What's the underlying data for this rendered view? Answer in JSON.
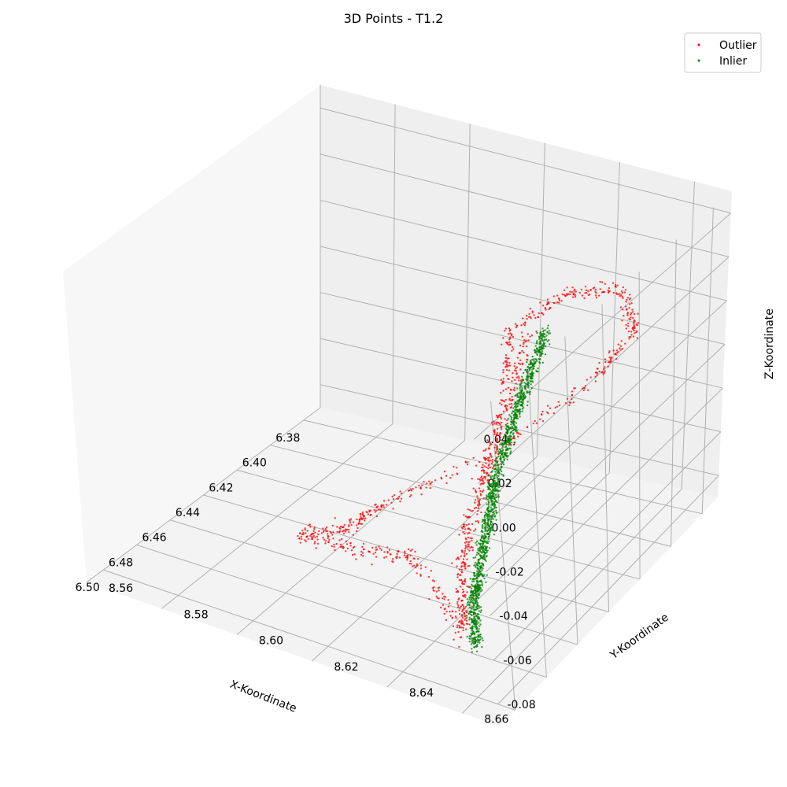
{
  "chart_data": {
    "type": "scatter",
    "projection": "3d",
    "title": "3D Points - T1.2",
    "xlabel": "X-Koordinate",
    "ylabel": "Y-Koordinate",
    "zlabel": "Z-Koordinate",
    "xlim": [
      6.37,
      6.51
    ],
    "ylim": [
      8.56,
      8.67
    ],
    "zlim": [
      -0.09,
      0.05
    ],
    "xticks": [
      "6.38",
      "6.40",
      "6.42",
      "6.44",
      "6.46",
      "6.48",
      "6.50"
    ],
    "yticks": [
      "8.56",
      "8.58",
      "8.60",
      "8.62",
      "8.64",
      "8.66"
    ],
    "zticks": [
      "-0.08",
      "-0.06",
      "-0.04",
      "-0.02",
      "0.00",
      "0.02",
      "0.04"
    ],
    "grid": true,
    "legend": {
      "placement": "top-right"
    },
    "series": [
      {
        "name": "Outlier",
        "color": "#ff0000",
        "points": [
          [
            6.455,
            8.658,
            0.044
          ],
          [
            6.47,
            8.66,
            0.025
          ],
          [
            6.485,
            8.66,
            0.003
          ],
          [
            6.495,
            8.658,
            -0.018
          ],
          [
            6.5,
            8.658,
            -0.038
          ],
          [
            6.505,
            8.66,
            -0.055
          ],
          [
            6.49,
            8.64,
            -0.045
          ],
          [
            6.48,
            8.62,
            -0.06
          ],
          [
            6.47,
            8.6,
            -0.07
          ],
          [
            6.44,
            8.6,
            -0.085
          ],
          [
            6.42,
            8.6,
            -0.088
          ],
          [
            6.4,
            8.62,
            -0.07
          ],
          [
            6.385,
            8.64,
            -0.04
          ],
          [
            6.39,
            8.655,
            -0.005
          ],
          [
            6.4,
            8.655,
            0.02
          ],
          [
            6.43,
            8.655,
            0.04
          ],
          [
            6.45,
            8.65,
            0.035
          ],
          [
            6.465,
            8.655,
            0.015
          ],
          [
            6.48,
            8.655,
            -0.01
          ],
          [
            6.51,
            8.66,
            -0.06
          ]
        ]
      },
      {
        "name": "Inlier",
        "color": "#008000",
        "points": [
          [
            6.455,
            8.662,
            0.044
          ],
          [
            6.465,
            8.662,
            0.03
          ],
          [
            6.475,
            8.662,
            0.015
          ],
          [
            6.485,
            8.662,
            0.0
          ],
          [
            6.49,
            8.662,
            -0.015
          ],
          [
            6.497,
            8.662,
            -0.03
          ],
          [
            6.502,
            8.662,
            -0.045
          ],
          [
            6.507,
            8.664,
            -0.06
          ]
        ]
      }
    ]
  }
}
